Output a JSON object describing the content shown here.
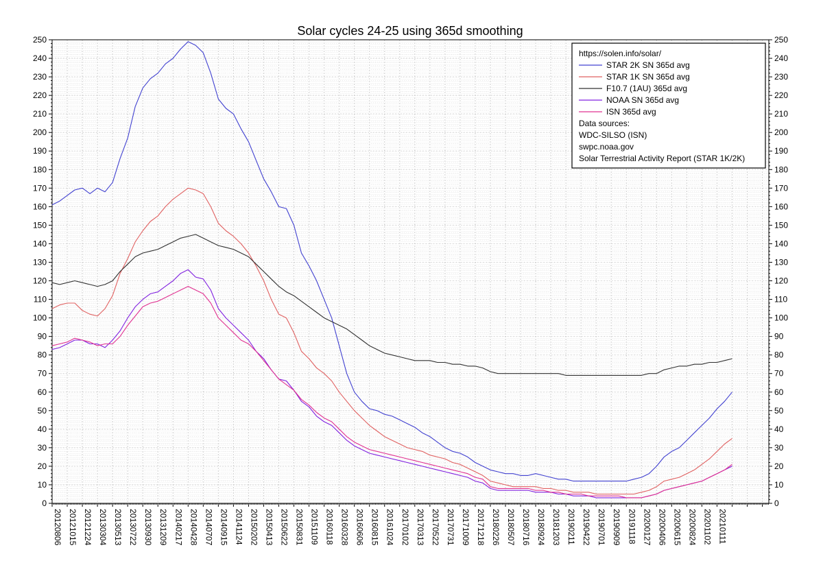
{
  "chart_data": {
    "type": "line",
    "title": "Solar cycles 24-25 using 365d smoothing",
    "xlabel": "",
    "ylabel": "",
    "x_range": [
      0,
      3320
    ],
    "ylim": [
      0,
      250
    ],
    "y_ticks": [
      0,
      10,
      20,
      30,
      40,
      50,
      60,
      70,
      80,
      90,
      100,
      110,
      120,
      130,
      140,
      150,
      160,
      170,
      180,
      190,
      200,
      210,
      220,
      230,
      240,
      250
    ],
    "x_ticks": [
      {
        "day": 0,
        "label": "20120806"
      },
      {
        "day": 70,
        "label": "20121015"
      },
      {
        "day": 140,
        "label": "20121224"
      },
      {
        "day": 210,
        "label": "20130304"
      },
      {
        "day": 280,
        "label": "20130513"
      },
      {
        "day": 350,
        "label": "20130722"
      },
      {
        "day": 420,
        "label": "20130930"
      },
      {
        "day": 490,
        "label": "20131209"
      },
      {
        "day": 560,
        "label": "20140217"
      },
      {
        "day": 630,
        "label": "20140428"
      },
      {
        "day": 700,
        "label": "20140707"
      },
      {
        "day": 770,
        "label": "20140915"
      },
      {
        "day": 840,
        "label": "20141124"
      },
      {
        "day": 910,
        "label": "20150202"
      },
      {
        "day": 980,
        "label": "20150413"
      },
      {
        "day": 1050,
        "label": "20150622"
      },
      {
        "day": 1120,
        "label": "20150831"
      },
      {
        "day": 1190,
        "label": "20151109"
      },
      {
        "day": 1260,
        "label": "20160118"
      },
      {
        "day": 1330,
        "label": "20160328"
      },
      {
        "day": 1400,
        "label": "20160606"
      },
      {
        "day": 1470,
        "label": "20160815"
      },
      {
        "day": 1540,
        "label": "20161024"
      },
      {
        "day": 1610,
        "label": "20170102"
      },
      {
        "day": 1680,
        "label": "20170313"
      },
      {
        "day": 1750,
        "label": "20170522"
      },
      {
        "day": 1820,
        "label": "20170731"
      },
      {
        "day": 1890,
        "label": "20171009"
      },
      {
        "day": 1960,
        "label": "20171218"
      },
      {
        "day": 2030,
        "label": "20180226"
      },
      {
        "day": 2100,
        "label": "20180507"
      },
      {
        "day": 2170,
        "label": "20180716"
      },
      {
        "day": 2240,
        "label": "20180924"
      },
      {
        "day": 2310,
        "label": "20181203"
      },
      {
        "day": 2380,
        "label": "20190211"
      },
      {
        "day": 2450,
        "label": "20190422"
      },
      {
        "day": 2520,
        "label": "20190701"
      },
      {
        "day": 2590,
        "label": "20190909"
      },
      {
        "day": 2660,
        "label": "20191118"
      },
      {
        "day": 2730,
        "label": "20200127"
      },
      {
        "day": 2800,
        "label": "20200406"
      },
      {
        "day": 2870,
        "label": "20200615"
      },
      {
        "day": 2940,
        "label": "20200824"
      },
      {
        "day": 3010,
        "label": "20201102"
      },
      {
        "day": 3080,
        "label": "20210111"
      }
    ],
    "series": [
      {
        "name": "STAR 2K SN 365d avg",
        "color": "#4040d0",
        "x": [
          0,
          35,
          70,
          105,
          140,
          175,
          210,
          245,
          280,
          315,
          350,
          385,
          420,
          455,
          490,
          525,
          560,
          595,
          630,
          665,
          700,
          735,
          770,
          805,
          840,
          875,
          910,
          945,
          980,
          1015,
          1050,
          1085,
          1120,
          1155,
          1190,
          1225,
          1260,
          1295,
          1330,
          1365,
          1400,
          1435,
          1470,
          1505,
          1540,
          1575,
          1610,
          1645,
          1680,
          1715,
          1750,
          1785,
          1820,
          1855,
          1890,
          1925,
          1960,
          1995,
          2030,
          2065,
          2100,
          2135,
          2170,
          2205,
          2240,
          2275,
          2310,
          2345,
          2380,
          2415,
          2450,
          2485,
          2520,
          2555,
          2590,
          2625,
          2660,
          2695,
          2730,
          2765,
          2800,
          2835,
          2870,
          2905,
          2940,
          2975,
          3010,
          3045,
          3080,
          3115,
          3150
        ],
        "values": [
          161,
          163,
          166,
          169,
          170,
          167,
          170,
          168,
          173,
          186,
          197,
          214,
          224,
          229,
          232,
          237,
          240,
          245,
          249,
          247,
          243,
          232,
          218,
          213,
          210,
          202,
          195,
          185,
          175,
          168,
          160,
          159,
          150,
          135,
          128,
          120,
          110,
          100,
          85,
          70,
          60,
          55,
          51,
          50,
          48,
          47,
          45,
          43,
          41,
          38,
          36,
          33,
          30,
          28,
          27,
          25,
          22,
          20,
          18,
          17,
          16,
          16,
          15,
          15,
          16,
          15,
          14,
          13,
          13,
          12,
          12,
          12,
          12,
          12,
          12,
          12,
          12,
          13,
          14,
          16,
          20,
          25,
          28,
          30,
          34,
          38,
          42,
          46,
          51,
          55,
          60
        ]
      },
      {
        "name": "STAR 1K SN 365d avg",
        "color": "#e06060",
        "x": [
          0,
          35,
          70,
          105,
          140,
          175,
          210,
          245,
          280,
          315,
          350,
          385,
          420,
          455,
          490,
          525,
          560,
          595,
          630,
          665,
          700,
          735,
          770,
          805,
          840,
          875,
          910,
          945,
          980,
          1015,
          1050,
          1085,
          1120,
          1155,
          1190,
          1225,
          1260,
          1295,
          1330,
          1365,
          1400,
          1435,
          1470,
          1505,
          1540,
          1575,
          1610,
          1645,
          1680,
          1715,
          1750,
          1785,
          1820,
          1855,
          1890,
          1925,
          1960,
          1995,
          2030,
          2065,
          2100,
          2135,
          2170,
          2205,
          2240,
          2275,
          2310,
          2345,
          2380,
          2415,
          2450,
          2485,
          2520,
          2555,
          2590,
          2625,
          2660,
          2695,
          2730,
          2765,
          2800,
          2835,
          2870,
          2905,
          2940,
          2975,
          3010,
          3045,
          3080,
          3115,
          3150
        ],
        "values": [
          105,
          107,
          108,
          108,
          104,
          102,
          101,
          105,
          112,
          124,
          132,
          141,
          147,
          152,
          155,
          160,
          164,
          167,
          170,
          169,
          167,
          160,
          151,
          147,
          144,
          140,
          135,
          128,
          120,
          110,
          102,
          100,
          92,
          82,
          78,
          73,
          70,
          66,
          60,
          55,
          50,
          46,
          42,
          39,
          36,
          34,
          32,
          30,
          29,
          28,
          26,
          25,
          24,
          22,
          21,
          19,
          17,
          15,
          12,
          11,
          10,
          9,
          9,
          9,
          9,
          8,
          8,
          7,
          7,
          6,
          6,
          6,
          5,
          5,
          5,
          5,
          5,
          5,
          6,
          7,
          9,
          12,
          13,
          14,
          16,
          18,
          21,
          24,
          28,
          32,
          35
        ]
      },
      {
        "name": "F10.7 (1AU) 365d avg",
        "color": "#303030",
        "x": [
          0,
          35,
          70,
          105,
          140,
          175,
          210,
          245,
          280,
          315,
          350,
          385,
          420,
          455,
          490,
          525,
          560,
          595,
          630,
          665,
          700,
          735,
          770,
          805,
          840,
          875,
          910,
          945,
          980,
          1015,
          1050,
          1085,
          1120,
          1155,
          1190,
          1225,
          1260,
          1295,
          1330,
          1365,
          1400,
          1435,
          1470,
          1505,
          1540,
          1575,
          1610,
          1645,
          1680,
          1715,
          1750,
          1785,
          1820,
          1855,
          1890,
          1925,
          1960,
          1995,
          2030,
          2065,
          2100,
          2135,
          2170,
          2205,
          2240,
          2275,
          2310,
          2345,
          2380,
          2415,
          2450,
          2485,
          2520,
          2555,
          2590,
          2625,
          2660,
          2695,
          2730,
          2765,
          2800,
          2835,
          2870,
          2905,
          2940,
          2975,
          3010,
          3045,
          3080,
          3115,
          3150
        ],
        "values": [
          119,
          118,
          119,
          120,
          119,
          118,
          117,
          118,
          120,
          125,
          129,
          133,
          135,
          136,
          137,
          139,
          141,
          143,
          144,
          145,
          143,
          141,
          139,
          138,
          137,
          135,
          133,
          129,
          125,
          121,
          117,
          114,
          112,
          109,
          106,
          103,
          100,
          98,
          96,
          94,
          91,
          88,
          85,
          83,
          81,
          80,
          79,
          78,
          77,
          77,
          77,
          76,
          76,
          75,
          75,
          74,
          74,
          73,
          71,
          70,
          70,
          70,
          70,
          70,
          70,
          70,
          70,
          70,
          69,
          69,
          69,
          69,
          69,
          69,
          69,
          69,
          69,
          69,
          69,
          70,
          70,
          72,
          73,
          74,
          74,
          75,
          75,
          76,
          76,
          77,
          78
        ]
      },
      {
        "name": "NOAA SN 365d avg",
        "color": "#8020e0",
        "x": [
          0,
          35,
          70,
          105,
          140,
          175,
          210,
          245,
          280,
          315,
          350,
          385,
          420,
          455,
          490,
          525,
          560,
          595,
          630,
          665,
          700,
          735,
          770,
          805,
          840,
          875,
          910,
          945,
          980,
          1015,
          1050,
          1085,
          1120,
          1155,
          1190,
          1225,
          1260,
          1295,
          1330,
          1365,
          1400,
          1435,
          1470,
          1505,
          1540,
          1575,
          1610,
          1645,
          1680,
          1715,
          1750,
          1785,
          1820,
          1855,
          1890,
          1925,
          1960,
          1995,
          2030,
          2065,
          2100,
          2135,
          2170,
          2205,
          2240,
          2275,
          2310,
          2345,
          2380,
          2415,
          2450,
          2485,
          2520,
          2555,
          2590,
          2625,
          2660,
          2695,
          2730,
          2765,
          2800,
          2835,
          2870,
          2905,
          2940,
          2975,
          3010,
          3045,
          3080,
          3115,
          3150
        ],
        "values": [
          83,
          84,
          86,
          88,
          88,
          86,
          86,
          84,
          88,
          93,
          100,
          106,
          110,
          113,
          114,
          117,
          120,
          124,
          126,
          122,
          121,
          115,
          105,
          100,
          96,
          92,
          88,
          82,
          78,
          72,
          67,
          66,
          61,
          55,
          52,
          47,
          44,
          42,
          38,
          34,
          31,
          29,
          27,
          26,
          25,
          24,
          23,
          22,
          21,
          20,
          19,
          18,
          17,
          16,
          15,
          14,
          12,
          11,
          8,
          7,
          7,
          7,
          7,
          7,
          6,
          6,
          6,
          5,
          5,
          4,
          4,
          4,
          3,
          3,
          3,
          3,
          3,
          3,
          3,
          4,
          5,
          7,
          8,
          9,
          10,
          11,
          12,
          14,
          16,
          18,
          20
        ]
      },
      {
        "name": "ISN 365d avg",
        "color": "#e03090",
        "x": [
          0,
          35,
          70,
          105,
          140,
          175,
          210,
          245,
          280,
          315,
          350,
          385,
          420,
          455,
          490,
          525,
          560,
          595,
          630,
          665,
          700,
          735,
          770,
          805,
          840,
          875,
          910,
          945,
          980,
          1015,
          1050,
          1085,
          1120,
          1155,
          1190,
          1225,
          1260,
          1295,
          1330,
          1365,
          1400,
          1435,
          1470,
          1505,
          1540,
          1575,
          1610,
          1645,
          1680,
          1715,
          1750,
          1785,
          1820,
          1855,
          1890,
          1925,
          1960,
          1995,
          2030,
          2065,
          2100,
          2135,
          2170,
          2205,
          2240,
          2275,
          2310,
          2345,
          2380,
          2415,
          2450,
          2485,
          2520,
          2555,
          2590,
          2625,
          2660,
          2695,
          2730,
          2765,
          2800,
          2835,
          2870,
          2905,
          2940,
          2975,
          3010,
          3045,
          3080,
          3115,
          3150
        ],
        "values": [
          85,
          86,
          87,
          89,
          88,
          87,
          85,
          86,
          86,
          90,
          96,
          101,
          106,
          108,
          109,
          111,
          113,
          115,
          117,
          115,
          113,
          108,
          100,
          96,
          92,
          88,
          86,
          82,
          77,
          72,
          67,
          64,
          61,
          56,
          53,
          49,
          46,
          44,
          40,
          36,
          33,
          31,
          29,
          28,
          27,
          26,
          25,
          24,
          23,
          22,
          21,
          20,
          19,
          18,
          17,
          16,
          14,
          13,
          9,
          8,
          8,
          8,
          8,
          8,
          7,
          7,
          6,
          6,
          5,
          5,
          5,
          4,
          4,
          4,
          4,
          4,
          3,
          3,
          3,
          4,
          5,
          7,
          8,
          9,
          10,
          11,
          12,
          14,
          16,
          18,
          21
        ]
      }
    ],
    "legend": {
      "placement": "top-right",
      "header": "https://solen.info/solar/",
      "sources_label": "Data sources:",
      "sources": [
        "WDC-SILSO (ISN)",
        "swpc.noaa.gov",
        "Solar Terrestrial Activity Report (STAR 1K/2K)"
      ]
    }
  }
}
